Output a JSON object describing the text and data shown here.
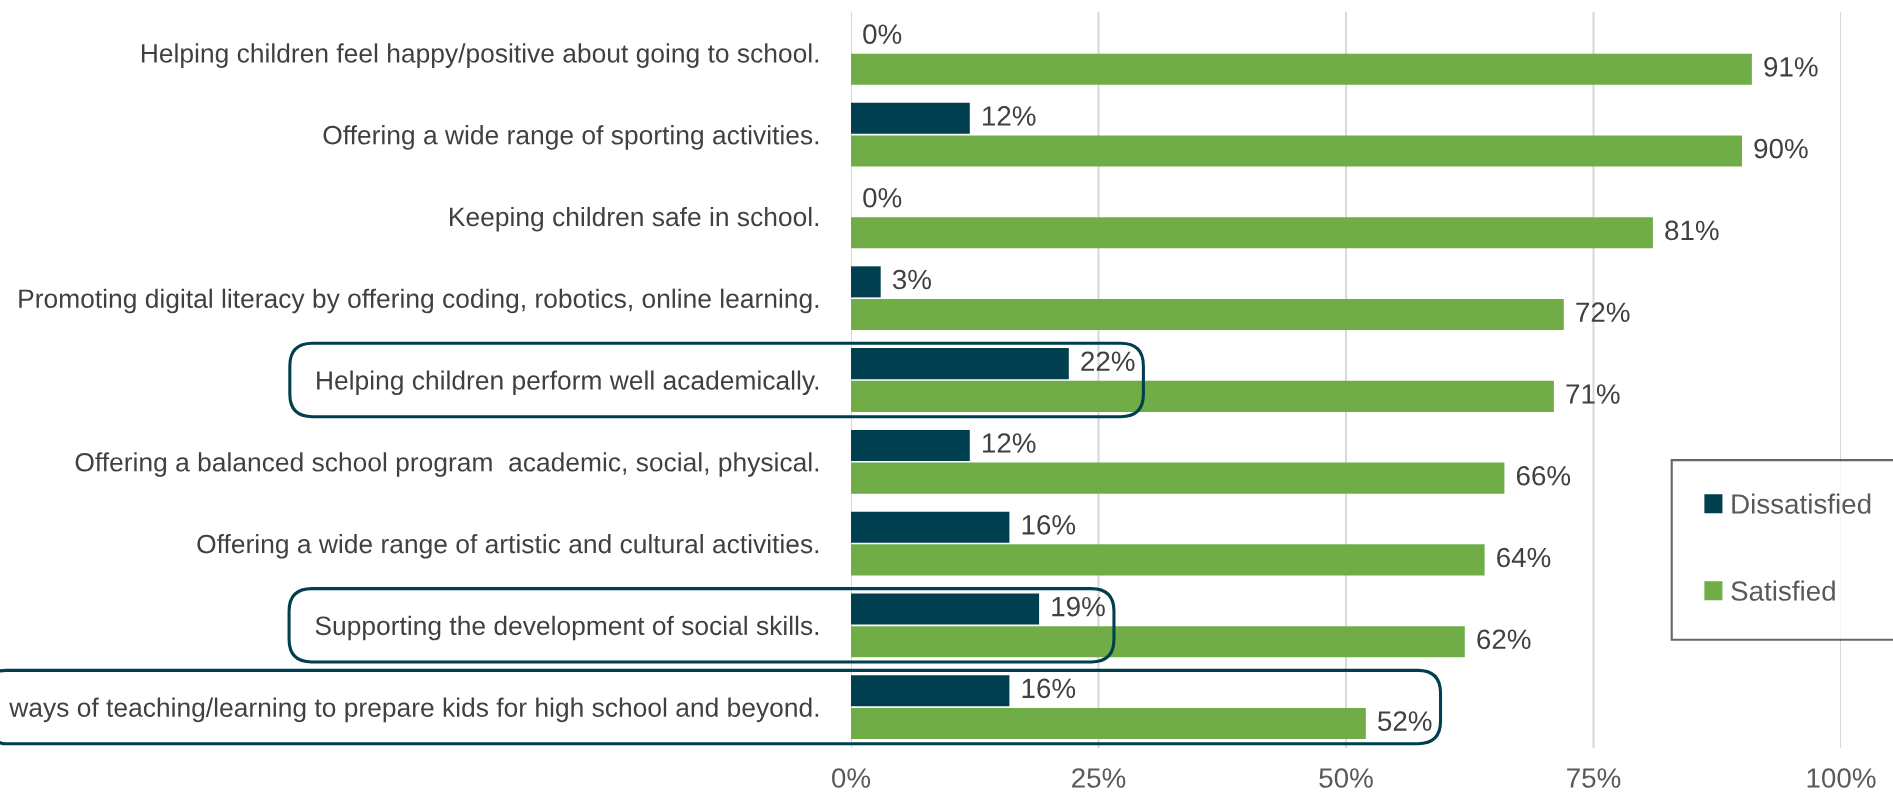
{
  "chart_data": {
    "type": "bar",
    "orientation": "horizontal",
    "categories": [
      "Helping children feel happy/positive about going to school.",
      "Offering a wide range of sporting activities.",
      "Keeping children safe in school.",
      "Promoting digital literacy by offering coding, robotics, online learning.",
      "Helping children perform well academically.",
      "Offering a balanced school program  academic, social, physical.",
      "Offering a wide range of artistic and cultural activities.",
      "Supporting the development of social skills.",
      "ways of teaching/learning to prepare kids for high school and beyond."
    ],
    "series": [
      {
        "name": "Dissatisfied",
        "color": "#003f4f",
        "values": [
          0,
          12,
          0,
          3,
          22,
          12,
          16,
          19,
          16
        ],
        "value_labels": [
          "0%",
          "12%",
          "0%",
          "3%",
          "22%",
          "12%",
          "16%",
          "19%",
          "16%"
        ]
      },
      {
        "name": "Satisfied",
        "color": "#70ad47",
        "values": [
          91,
          90,
          81,
          72,
          71,
          66,
          64,
          62,
          52
        ],
        "value_labels": [
          "91%",
          "90%",
          "81%",
          "72%",
          "71%",
          "66%",
          "64%",
          "62%",
          "52%"
        ]
      }
    ],
    "xlim": [
      0,
      100
    ],
    "xticks": [
      {
        "value": 0,
        "label": "0%"
      },
      {
        "value": 25,
        "label": "25%"
      },
      {
        "value": 50,
        "label": "50%"
      },
      {
        "value": 75,
        "label": "75%"
      },
      {
        "value": 100,
        "label": "100%"
      }
    ],
    "grid": "x",
    "legend": "right"
  }
}
